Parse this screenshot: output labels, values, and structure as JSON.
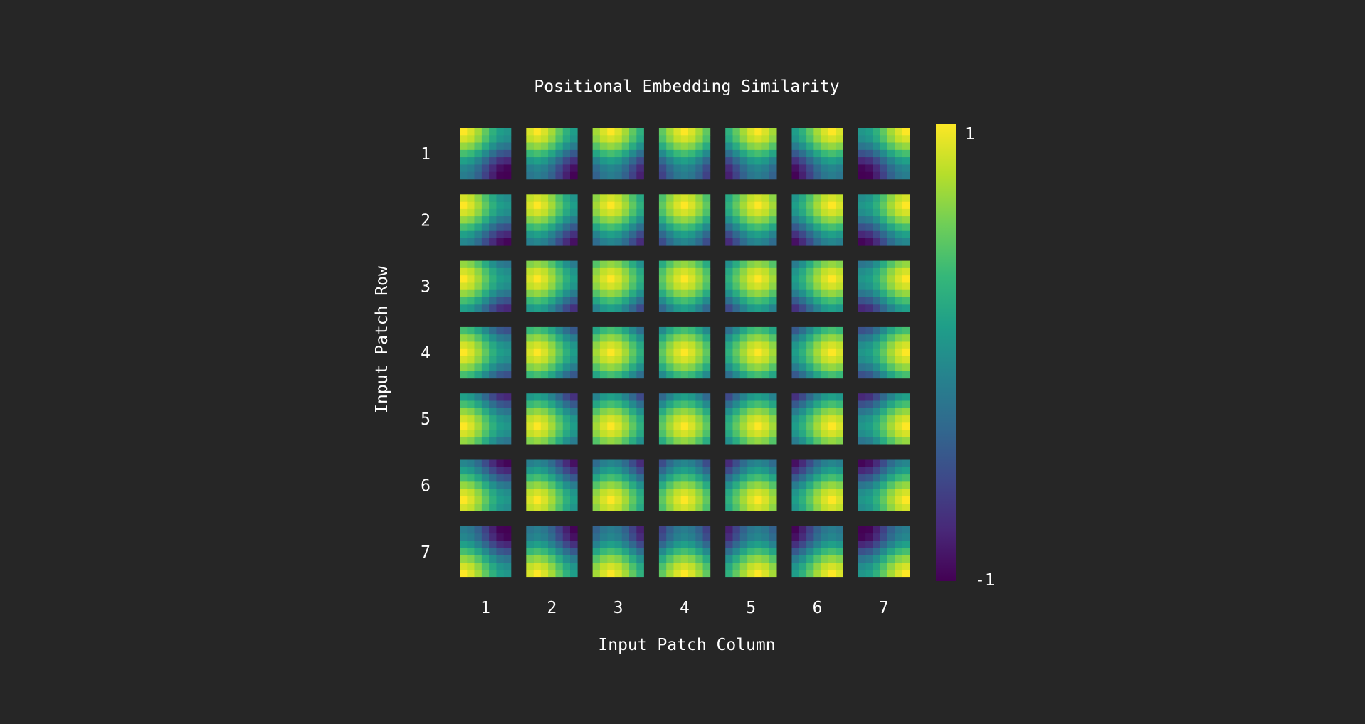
{
  "chart_data": {
    "type": "heatmap",
    "title": "Positional Embedding Similarity",
    "xlabel": "Input Patch Column",
    "ylabel": "Input Patch Row",
    "grid_rows": 7,
    "grid_cols": 7,
    "x_ticks": [
      "1",
      "2",
      "3",
      "4",
      "5",
      "6",
      "7"
    ],
    "y_ticks": [
      "1",
      "2",
      "3",
      "4",
      "5",
      "6",
      "7"
    ],
    "colorbar": {
      "min": -1,
      "max": 1,
      "min_label": "-1",
      "max_label": "1",
      "colormap": "viridis",
      "colors": [
        "#440154",
        "#482878",
        "#3e4989",
        "#31688e",
        "#26828e",
        "#1f9e89",
        "#35b779",
        "#6ece58",
        "#b5de2b",
        "#fde725"
      ]
    },
    "cells_per_tile": 7,
    "value_model": "similarity of patch (r,c) to patch (R,C) ≈ peak 1 at same row/column, decaying with distance"
  }
}
